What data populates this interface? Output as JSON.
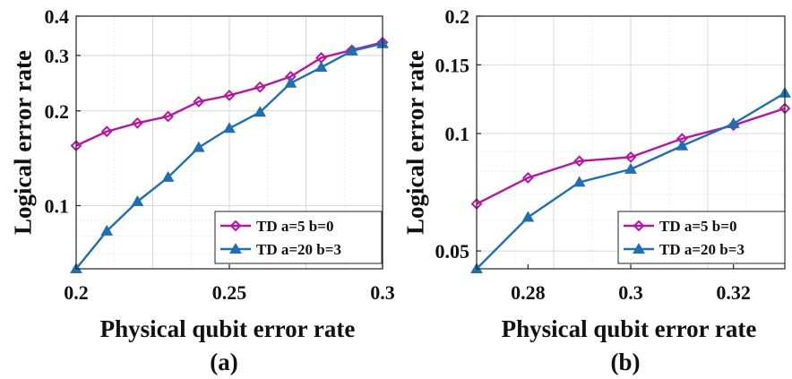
{
  "chart_data": [
    {
      "type": "line",
      "panel_label": "(a)",
      "xlabel": "Physical qubit error rate",
      "ylabel": "Logical error rate",
      "yscale": "log",
      "xlim": [
        0.2,
        0.3
      ],
      "ylim": [
        0.063,
        0.4
      ],
      "xticks": [
        0.2,
        0.25,
        0.3
      ],
      "xtick_labels": [
        "0.2",
        "0.25",
        "0.3"
      ],
      "yticks": [
        0.1,
        0.2,
        0.3,
        0.4
      ],
      "ytick_labels": [
        "0.1",
        "0.2",
        "0.3",
        "0.4"
      ],
      "grid": true,
      "legend_position": "bottom-right",
      "series": [
        {
          "name": "TD a=5 b=0",
          "color": "#b5179e",
          "marker": "diamond",
          "x": [
            0.2,
            0.21,
            0.22,
            0.23,
            0.24,
            0.25,
            0.26,
            0.27,
            0.28,
            0.29,
            0.3
          ],
          "values": [
            0.155,
            0.172,
            0.183,
            0.192,
            0.214,
            0.224,
            0.238,
            0.257,
            0.295,
            0.312,
            0.33
          ]
        },
        {
          "name": "TD a=20 b=3",
          "color": "#1f6fb2",
          "marker": "triangle",
          "x": [
            0.2,
            0.21,
            0.22,
            0.23,
            0.24,
            0.25,
            0.26,
            0.27,
            0.28,
            0.29,
            0.3
          ],
          "values": [
            0.063,
            0.083,
            0.103,
            0.123,
            0.153,
            0.176,
            0.198,
            0.245,
            0.275,
            0.31,
            0.327
          ]
        }
      ]
    },
    {
      "type": "line",
      "panel_label": "(b)",
      "xlabel": "Physical qubit error rate",
      "ylabel": "Logical error rate",
      "yscale": "log",
      "xlim": [
        0.27,
        0.33
      ],
      "ylim": [
        0.045,
        0.2
      ],
      "xticks": [
        0.28,
        0.3,
        0.32
      ],
      "xtick_labels": [
        "0.28",
        "0.3",
        "0.32"
      ],
      "yticks": [
        0.05,
        0.1,
        0.15,
        0.2
      ],
      "ytick_labels": [
        "0.05",
        "0.1",
        "0.15",
        "0.2"
      ],
      "grid": true,
      "legend_position": "bottom-right",
      "series": [
        {
          "name": "TD a=5 b=0",
          "color": "#b5179e",
          "marker": "diamond",
          "x": [
            0.27,
            0.28,
            0.29,
            0.3,
            0.31,
            0.32,
            0.33
          ],
          "values": [
            0.066,
            0.077,
            0.085,
            0.087,
            0.097,
            0.105,
            0.116
          ]
        },
        {
          "name": "TD a=20 b=3",
          "color": "#1f6fb2",
          "marker": "triangle",
          "x": [
            0.27,
            0.28,
            0.29,
            0.3,
            0.31,
            0.32,
            0.33
          ],
          "values": [
            0.045,
            0.061,
            0.075,
            0.081,
            0.093,
            0.106,
            0.127
          ]
        }
      ]
    }
  ]
}
